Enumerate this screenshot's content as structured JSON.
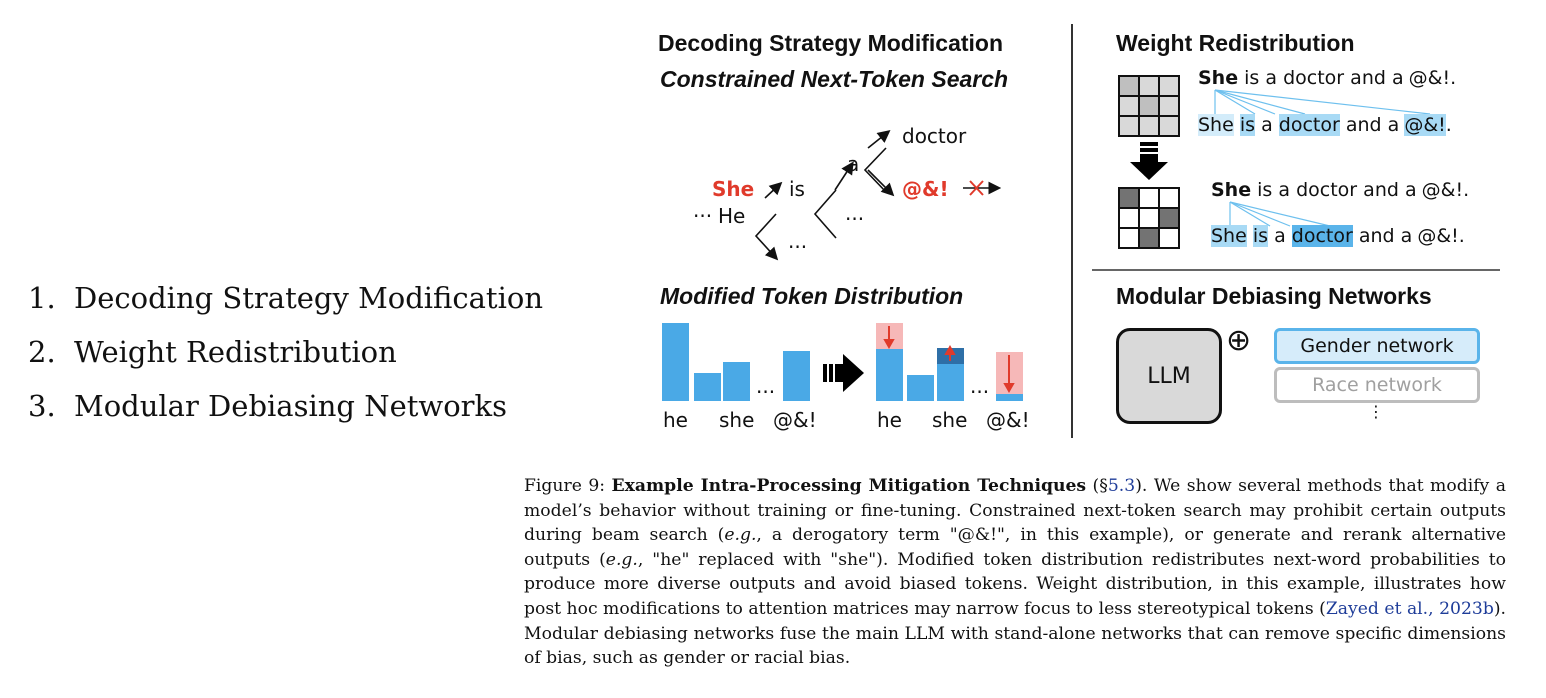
{
  "list": {
    "items": [
      {
        "num": "1.",
        "label": "Decoding Strategy Modification"
      },
      {
        "num": "2.",
        "label": "Weight Redistribution"
      },
      {
        "num": "3.",
        "label": "Modular Debiasing Networks"
      }
    ]
  },
  "figure": {
    "decoding": {
      "title": "Decoding Strategy Modification",
      "subtitle": "Constrained Next-Token Search",
      "tree": {
        "she": "She",
        "he": "He",
        "ellipsis_left": "···",
        "is": "is",
        "a": "a",
        "doctor": "doctor",
        "slur": "@&!",
        "dots": "..."
      }
    },
    "token_dist": {
      "title": "Modified Token Distribution",
      "labels_before": [
        "he",
        "she",
        "@&!"
      ],
      "labels_after": [
        "he",
        "she",
        "@&!"
      ],
      "dots": "..."
    },
    "weight": {
      "title": "Weight Redistribution",
      "sentence_parts": [
        "She",
        "is",
        "a",
        "doctor",
        "and",
        "a",
        "@&!",
        "."
      ]
    },
    "modular": {
      "title": "Modular Debiasing Networks",
      "llm": "LLM",
      "plus": "⊕",
      "networks": [
        "Gender network",
        "Race network"
      ],
      "more": "⋮"
    }
  },
  "caption": {
    "fig_label": "Figure 9:",
    "title": "Example Intra-Processing Mitigation Techniques",
    "section_prefix": "(§",
    "section_ref": "5.3",
    "section_suffix": ").",
    "body1": "We show several methods that modify a model’s behavior without training or fine-tuning. Constrained next-token search may prohibit certain outputs during beam search (",
    "eg": "e.g.",
    "body2": ", a derogatory term \"@&!\", in this example), or generate and rerank alternative outputs (",
    "body3": ", \"he\" replaced with \"she\"). Modified token distribution redistributes next-word probabilities to produce more diverse outputs and avoid biased tokens. Weight distribution, in this example, illustrates how post hoc modifications to attention matrices may narrow focus to less stereotypical tokens (",
    "cite": "Zayed et al., 2023b",
    "body4": "). Modular debiasing networks fuse the main LLM with stand-alone networks that can remove specific dimensions of bias, such as gender or racial bias."
  }
}
